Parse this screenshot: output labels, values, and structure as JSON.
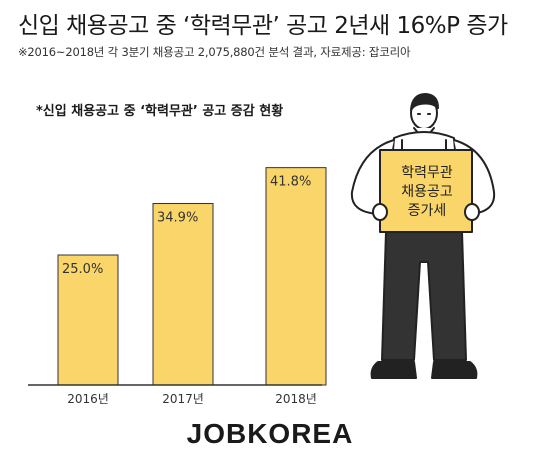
{
  "header": {
    "title": "신입 채용공고 중 ‘학력무관’ 공고 2년새 16%P 증가",
    "subtitle": "※2016~2018년 각 3분기 채용공고 2,075,880건 분석 결과,  자료제공: 잡코리아"
  },
  "chart_data": {
    "type": "bar",
    "title": "*신입 채용공고 중 ‘학력무관’ 공고 증감 현황",
    "categories": [
      "2016년",
      "2017년",
      "2018년"
    ],
    "values": [
      25.0,
      34.9,
      41.8
    ],
    "value_labels": [
      "25.0%",
      "34.9%",
      "41.8%"
    ],
    "ylim": [
      0,
      50
    ],
    "grid": false,
    "colors": {
      "bar": "#F9D56A",
      "bar_stroke": "#333333"
    }
  },
  "illustration": {
    "sign_lines": [
      "학력무관",
      "채용공고",
      "증가세"
    ]
  },
  "brand": "JOBKOREA"
}
